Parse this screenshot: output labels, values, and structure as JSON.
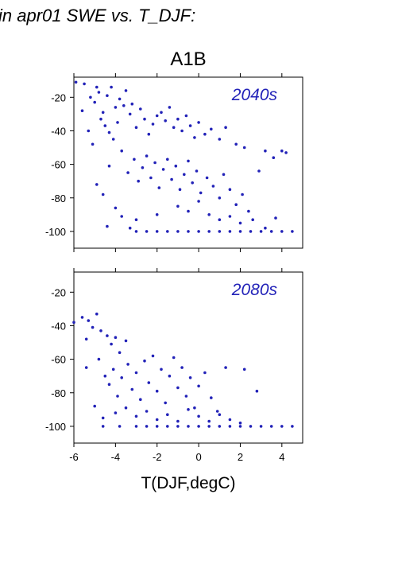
{
  "figure": {
    "header_text": "in apr01 SWE vs. T_DJF:",
    "scenario": "A1B",
    "xlabel": "T(DJF,degC)"
  },
  "chart_data": [
    {
      "type": "scatter",
      "annotation": "2040s",
      "xlim": [
        -6,
        5
      ],
      "ylim": [
        -110,
        -8
      ],
      "xticks": [
        -6,
        -4,
        -2,
        0,
        2,
        4
      ],
      "yticks": [
        -20,
        -40,
        -60,
        -80,
        -100
      ],
      "x_tick_labels_shown": false,
      "point_color": "#2222b8",
      "points": [
        [
          -5.9,
          -11
        ],
        [
          -5.5,
          -12
        ],
        [
          -5.2,
          -20
        ],
        [
          -4.9,
          -14
        ],
        [
          -4.8,
          -17
        ],
        [
          -4.4,
          -19
        ],
        [
          -4.2,
          -14
        ],
        [
          -3.8,
          -21
        ],
        [
          -3.5,
          -16
        ],
        [
          -5.6,
          -28
        ],
        [
          -5.0,
          -23
        ],
        [
          -4.6,
          -29
        ],
        [
          -4.0,
          -26
        ],
        [
          -3.6,
          -25
        ],
        [
          -3.2,
          -24
        ],
        [
          -5.3,
          -40
        ],
        [
          -5.1,
          -48
        ],
        [
          -4.7,
          -33
        ],
        [
          -4.5,
          -37
        ],
        [
          -4.3,
          -41
        ],
        [
          -4.1,
          -45
        ],
        [
          -3.9,
          -35
        ],
        [
          -3.7,
          -52
        ],
        [
          -3.3,
          -30
        ],
        [
          -3.0,
          -38
        ],
        [
          -2.8,
          -27
        ],
        [
          -2.6,
          -33
        ],
        [
          -2.4,
          -42
        ],
        [
          -2.2,
          -36
        ],
        [
          -2.0,
          -31
        ],
        [
          -1.8,
          -29
        ],
        [
          -1.6,
          -34
        ],
        [
          -1.4,
          -26
        ],
        [
          -1.2,
          -38
        ],
        [
          -1.0,
          -33
        ],
        [
          -0.8,
          -40
        ],
        [
          -0.6,
          -31
        ],
        [
          -0.4,
          -37
        ],
        [
          -0.2,
          -44
        ],
        [
          0.0,
          -35
        ],
        [
          0.3,
          -42
        ],
        [
          0.6,
          -39
        ],
        [
          1.0,
          -45
        ],
        [
          1.3,
          -38
        ],
        [
          1.8,
          -48
        ],
        [
          2.2,
          -50
        ],
        [
          -4.9,
          -72
        ],
        [
          -4.6,
          -78
        ],
        [
          -4.3,
          -61
        ],
        [
          -4.0,
          -86
        ],
        [
          -3.7,
          -91
        ],
        [
          -3.4,
          -65
        ],
        [
          -3.1,
          -57
        ],
        [
          -2.9,
          -70
        ],
        [
          -2.7,
          -62
        ],
        [
          -2.5,
          -55
        ],
        [
          -2.3,
          -68
        ],
        [
          -2.1,
          -59
        ],
        [
          -1.9,
          -74
        ],
        [
          -1.7,
          -63
        ],
        [
          -1.5,
          -57
        ],
        [
          -1.3,
          -69
        ],
        [
          -1.1,
          -61
        ],
        [
          -0.9,
          -75
        ],
        [
          -0.7,
          -66
        ],
        [
          -0.5,
          -58
        ],
        [
          -0.3,
          -71
        ],
        [
          -0.1,
          -64
        ],
        [
          0.1,
          -77
        ],
        [
          0.4,
          -68
        ],
        [
          0.7,
          -73
        ],
        [
          1.0,
          -80
        ],
        [
          1.2,
          -66
        ],
        [
          1.5,
          -75
        ],
        [
          1.8,
          -84
        ],
        [
          2.1,
          -78
        ],
        [
          2.4,
          -88
        ],
        [
          2.9,
          -64
        ],
        [
          3.2,
          -52
        ],
        [
          3.6,
          -56
        ],
        [
          4.0,
          -52
        ],
        [
          4.2,
          -53
        ],
        [
          -4.4,
          -97
        ],
        [
          -3.3,
          -98
        ],
        [
          -3.0,
          -93
        ],
        [
          -2.0,
          -90
        ],
        [
          -1.0,
          -85
        ],
        [
          -0.5,
          -88
        ],
        [
          0.0,
          -82
        ],
        [
          0.5,
          -90
        ],
        [
          1.0,
          -93
        ],
        [
          1.5,
          -91
        ],
        [
          2.0,
          -95
        ],
        [
          2.6,
          -93
        ],
        [
          3.2,
          -98
        ],
        [
          3.7,
          -92
        ],
        [
          -3.0,
          -100
        ],
        [
          -2.5,
          -100
        ],
        [
          -2.0,
          -100
        ],
        [
          -1.5,
          -100
        ],
        [
          -1.0,
          -100
        ],
        [
          -0.5,
          -100
        ],
        [
          0.0,
          -100
        ],
        [
          0.5,
          -100
        ],
        [
          1.0,
          -100
        ],
        [
          1.5,
          -100
        ],
        [
          2.0,
          -100
        ],
        [
          2.5,
          -100
        ],
        [
          3.0,
          -100
        ],
        [
          3.5,
          -100
        ],
        [
          4.0,
          -100
        ],
        [
          4.5,
          -100
        ]
      ]
    },
    {
      "type": "scatter",
      "annotation": "2080s",
      "xlim": [
        -6,
        5
      ],
      "ylim": [
        -110,
        -8
      ],
      "xticks": [
        -6,
        -4,
        -2,
        0,
        2,
        4
      ],
      "yticks": [
        -20,
        -40,
        -60,
        -80,
        -100
      ],
      "x_tick_labels_shown": true,
      "point_color": "#2222b8",
      "points": [
        [
          -6.0,
          -38
        ],
        [
          -5.6,
          -35
        ],
        [
          -5.3,
          -37
        ],
        [
          -4.9,
          -33
        ],
        [
          -5.4,
          -48
        ],
        [
          -5.1,
          -41
        ],
        [
          -4.7,
          -43
        ],
        [
          -4.4,
          -46
        ],
        [
          -4.2,
          -51
        ],
        [
          -4.0,
          -47
        ],
        [
          -3.8,
          -56
        ],
        [
          -3.5,
          -49
        ],
        [
          -5.4,
          -65
        ],
        [
          -4.8,
          -60
        ],
        [
          -4.5,
          -70
        ],
        [
          -4.3,
          -75
        ],
        [
          -4.1,
          -66
        ],
        [
          -3.9,
          -82
        ],
        [
          -3.7,
          -71
        ],
        [
          -3.4,
          -63
        ],
        [
          -3.2,
          -78
        ],
        [
          -3.0,
          -68
        ],
        [
          -2.8,
          -84
        ],
        [
          -2.6,
          -61
        ],
        [
          -2.4,
          -74
        ],
        [
          -2.2,
          -58
        ],
        [
          -2.0,
          -79
        ],
        [
          -1.8,
          -66
        ],
        [
          -1.6,
          -86
        ],
        [
          -1.4,
          -70
        ],
        [
          -1.2,
          -59
        ],
        [
          -1.0,
          -77
        ],
        [
          -0.8,
          -65
        ],
        [
          -0.6,
          -82
        ],
        [
          -0.4,
          -71
        ],
        [
          -0.2,
          -89
        ],
        [
          0.0,
          -76
        ],
        [
          0.3,
          -68
        ],
        [
          0.6,
          -83
        ],
        [
          0.9,
          -91
        ],
        [
          1.3,
          -65
        ],
        [
          2.2,
          -66
        ],
        [
          2.8,
          -79
        ],
        [
          -5.0,
          -88
        ],
        [
          -4.6,
          -95
        ],
        [
          -4.0,
          -92
        ],
        [
          -3.5,
          -89
        ],
        [
          -3.0,
          -94
        ],
        [
          -2.5,
          -91
        ],
        [
          -2.0,
          -96
        ],
        [
          -1.5,
          -93
        ],
        [
          -1.0,
          -97
        ],
        [
          -0.5,
          -90
        ],
        [
          0.0,
          -94
        ],
        [
          0.5,
          -97
        ],
        [
          1.0,
          -93
        ],
        [
          1.5,
          -96
        ],
        [
          2.0,
          -98
        ],
        [
          -4.6,
          -100
        ],
        [
          -3.8,
          -100
        ],
        [
          -3.0,
          -100
        ],
        [
          -2.5,
          -100
        ],
        [
          -2.0,
          -100
        ],
        [
          -1.5,
          -100
        ],
        [
          -1.0,
          -100
        ],
        [
          -0.5,
          -100
        ],
        [
          0.0,
          -100
        ],
        [
          0.5,
          -100
        ],
        [
          1.0,
          -100
        ],
        [
          1.5,
          -100
        ],
        [
          2.0,
          -100
        ],
        [
          2.5,
          -100
        ],
        [
          3.0,
          -100
        ],
        [
          3.5,
          -100
        ],
        [
          4.0,
          -100
        ],
        [
          4.5,
          -100
        ]
      ]
    }
  ]
}
